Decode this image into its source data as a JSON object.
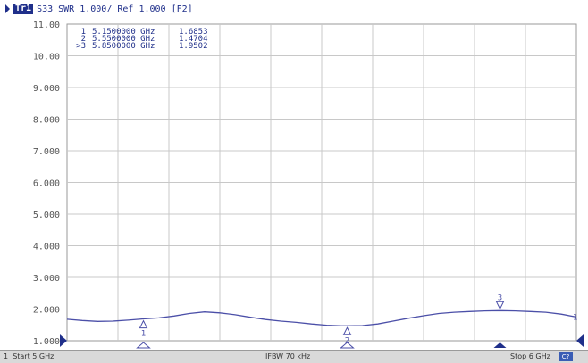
{
  "header": {
    "trace_tag": "Tr1",
    "trace_info": "S33 SWR 1.000/ Ref 1.000 [F2]"
  },
  "marker_table": [
    {
      "id": "1",
      "freq": "5.1500000 GHz",
      "value": "1.6853"
    },
    {
      "id": "2",
      "freq": "5.5500000 GHz",
      "value": "1.4704"
    },
    {
      "id": ">3",
      "freq": "5.8500000 GHz",
      "value": "1.9502"
    }
  ],
  "status_bar": {
    "channel": "1",
    "start": "Start 5 GHz",
    "ifbw": "IFBW 70 kHz",
    "stop": "Stop 6 GHz",
    "badge": "C?"
  },
  "trace_end_label": "1",
  "colors": {
    "trace": "#4b4fa8",
    "text": "#1f2f8a",
    "grid": "#c8c8c8",
    "axis_text": "#555555",
    "status_bg": "#d9d9d9"
  },
  "chart_data": {
    "type": "line",
    "x_unit": "GHz",
    "xlim": [
      5,
      6
    ],
    "ylim": [
      1,
      11
    ],
    "ytick_labels": [
      "11.00",
      "10.00",
      "9.000",
      "8.000",
      "7.000",
      "6.000",
      "5.000",
      "4.000",
      "3.000",
      "2.000",
      "1.000"
    ],
    "x_divisions": 10,
    "grid": true,
    "series": [
      {
        "x": [
          5.0,
          5.03,
          5.06,
          5.09,
          5.12,
          5.15,
          5.18,
          5.21,
          5.24,
          5.27,
          5.3,
          5.33,
          5.36,
          5.39,
          5.42,
          5.45,
          5.48,
          5.51,
          5.54,
          5.55,
          5.58,
          5.61,
          5.64,
          5.67,
          5.7,
          5.73,
          5.76,
          5.79,
          5.82,
          5.85,
          5.88,
          5.91,
          5.94,
          5.97,
          6.0
        ],
        "y": [
          1.68,
          1.64,
          1.61,
          1.62,
          1.65,
          1.69,
          1.72,
          1.78,
          1.86,
          1.91,
          1.88,
          1.82,
          1.74,
          1.67,
          1.62,
          1.58,
          1.53,
          1.49,
          1.47,
          1.47,
          1.48,
          1.53,
          1.62,
          1.71,
          1.79,
          1.86,
          1.9,
          1.92,
          1.94,
          1.95,
          1.94,
          1.92,
          1.9,
          1.84,
          1.75
        ]
      }
    ],
    "markers": [
      {
        "label": "1",
        "x": 5.15,
        "y": 1.6853
      },
      {
        "label": "2",
        "x": 5.55,
        "y": 1.4704
      },
      {
        "label": "3",
        "x": 5.85,
        "y": 1.9502
      }
    ]
  }
}
